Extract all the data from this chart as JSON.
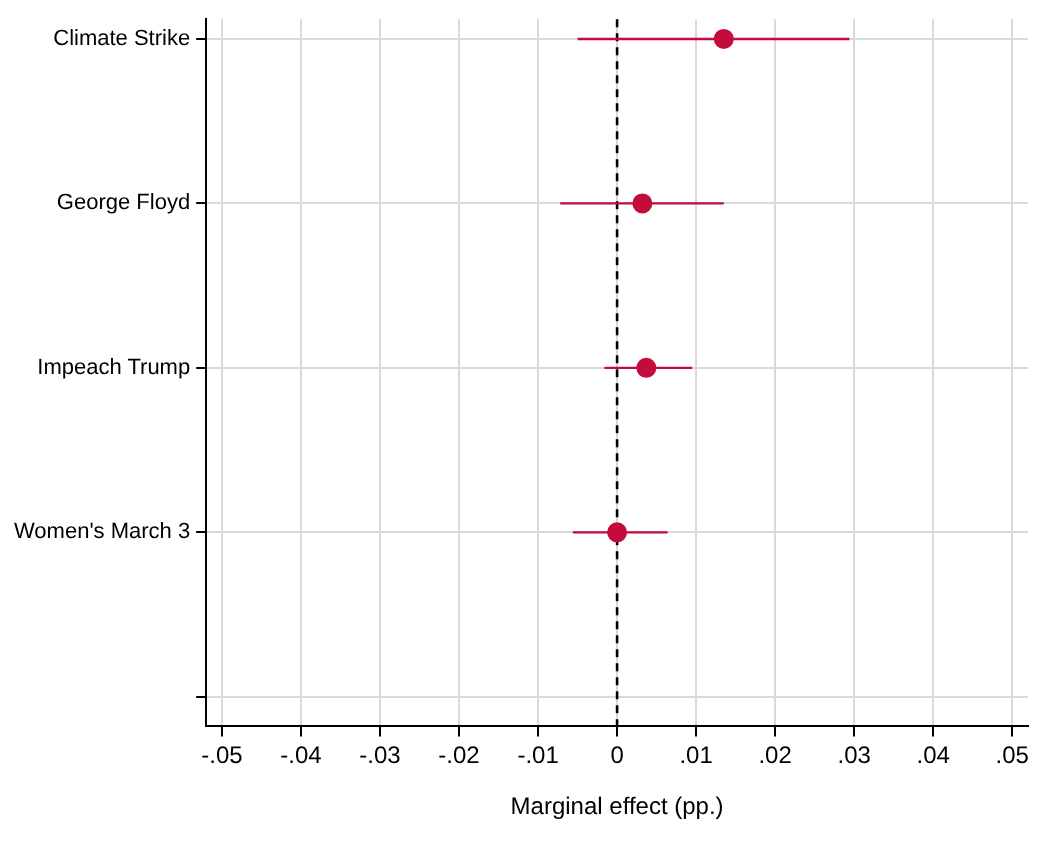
{
  "chart_data": {
    "type": "scatter",
    "orientation": "horizontal",
    "xlabel": "Marginal effect (pp.)",
    "categories": [
      "Climate Strike",
      "George Floyd",
      "Impeach Trump",
      "Women's March 3",
      null
    ],
    "values": [
      0.0135,
      0.0032,
      0.0037,
      0.0,
      null
    ],
    "errors": [
      [
        -0.005,
        0.0294
      ],
      [
        -0.0072,
        0.0135
      ],
      [
        -0.0016,
        0.0095
      ],
      [
        -0.0056,
        0.0064
      ],
      null
    ],
    "color": "#c40c3c",
    "marker": "circle",
    "grid": true,
    "legend": false,
    "xlim": [
      -0.052,
      0.052
    ],
    "xticks": [
      {
        "value": -0.05,
        "label": "-.05"
      },
      {
        "value": -0.04,
        "label": "-.04"
      },
      {
        "value": -0.03,
        "label": "-.03"
      },
      {
        "value": -0.02,
        "label": "-.02"
      },
      {
        "value": -0.01,
        "label": "-.01"
      },
      {
        "value": 0,
        "label": "0"
      },
      {
        "value": 0.01,
        "label": ".01"
      },
      {
        "value": 0.02,
        "label": ".02"
      },
      {
        "value": 0.03,
        "label": ".03"
      },
      {
        "value": 0.04,
        "label": ".04"
      },
      {
        "value": 0.05,
        "label": ".05"
      }
    ],
    "ref_lines": [
      {
        "axis": "x",
        "value": 0,
        "color": "#000000",
        "line_style": "dashed"
      }
    ]
  }
}
